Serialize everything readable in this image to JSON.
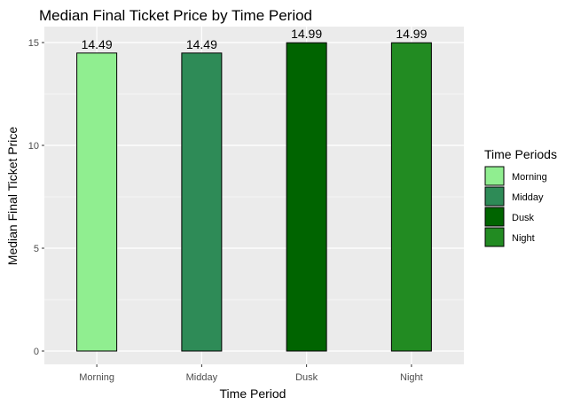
{
  "chart_data": {
    "type": "bar",
    "title": "Median Final Ticket Price by Time Period",
    "xlabel": "Time Period",
    "ylabel": "Median Final Ticket Price",
    "categories": [
      "Morning",
      "Midday",
      "Dusk",
      "Night"
    ],
    "values": [
      14.49,
      14.49,
      14.99,
      14.99
    ],
    "data_labels": [
      "14.49",
      "14.49",
      "14.99",
      "14.99"
    ],
    "bar_colors": [
      "#90EE90",
      "#2E8B57",
      "#006400",
      "#228B22"
    ],
    "ylim": [
      0,
      15.5
    ],
    "y_ticks": [
      0,
      5,
      10,
      15
    ],
    "grid": true,
    "legend": {
      "title": "Time Periods",
      "position": "right",
      "entries": [
        "Morning",
        "Midday",
        "Dusk",
        "Night"
      ]
    },
    "panel_background": "#EBEBEB",
    "grid_color": "#FFFFFF"
  }
}
